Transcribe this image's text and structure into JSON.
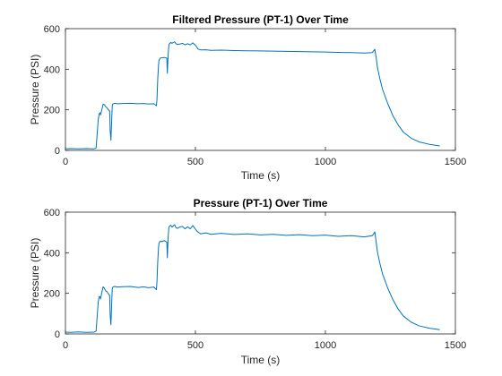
{
  "chart_data": [
    {
      "type": "line",
      "title": "Filtered Pressure (PT-1) Over Time",
      "xlabel": "Time (s)",
      "ylabel": "Pressure (PSI)",
      "xlim": [
        0,
        1500
      ],
      "ylim": [
        0,
        600
      ],
      "xticks": [
        0,
        500,
        1000,
        1500
      ],
      "yticks": [
        0,
        200,
        400,
        600
      ],
      "grid": false,
      "series_color": "#0072BD",
      "series": [
        {
          "x": [
            0,
            20,
            50,
            80,
            110,
            118,
            122,
            126,
            130,
            133,
            135,
            138,
            140,
            145,
            150,
            155,
            160,
            165,
            170,
            172,
            175,
            178,
            180,
            182,
            185,
            190,
            200,
            220,
            250,
            280,
            300,
            320,
            340,
            350,
            352,
            355,
            358,
            360,
            365,
            370,
            380,
            390,
            392,
            395,
            398,
            400,
            405,
            410,
            420,
            425,
            430,
            440,
            450,
            460,
            470,
            480,
            490,
            500,
            505,
            510,
            520,
            540,
            560,
            600,
            650,
            700,
            750,
            800,
            850,
            900,
            950,
            1000,
            1050,
            1100,
            1150,
            1180,
            1185,
            1190,
            1195,
            1200,
            1210,
            1220,
            1240,
            1260,
            1280,
            1300,
            1330,
            1360,
            1400,
            1440
          ],
          "y": [
            8,
            9,
            8,
            9,
            8,
            12,
            80,
            150,
            180,
            185,
            175,
            190,
            200,
            228,
            225,
            215,
            210,
            200,
            195,
            100,
            50,
            150,
            220,
            228,
            230,
            232,
            230,
            231,
            232,
            230,
            231,
            229,
            230,
            220,
            250,
            350,
            420,
            445,
            455,
            456,
            458,
            455,
            380,
            470,
            520,
            525,
            532,
            528,
            535,
            526,
            522,
            524,
            528,
            520,
            526,
            520,
            530,
            518,
            510,
            500,
            495,
            496,
            493,
            494,
            492,
            491,
            490,
            489,
            488,
            487,
            486,
            485,
            483,
            482,
            480,
            482,
            490,
            498,
            460,
            410,
            350,
            300,
            230,
            170,
            125,
            90,
            60,
            42,
            30,
            22
          ]
        }
      ]
    },
    {
      "type": "line",
      "title": "Pressure (PT-1) Over Time",
      "xlabel": "Time (s)",
      "ylabel": "Pressure (PSI)",
      "xlim": [
        0,
        1500
      ],
      "ylim": [
        0,
        600
      ],
      "xticks": [
        0,
        500,
        1000,
        1500
      ],
      "yticks": [
        0,
        200,
        400,
        600
      ],
      "grid": false,
      "series_color": "#0072BD",
      "series": [
        {
          "x": [
            0,
            20,
            50,
            80,
            110,
            118,
            122,
            126,
            130,
            133,
            135,
            138,
            140,
            145,
            150,
            155,
            160,
            165,
            170,
            172,
            175,
            178,
            180,
            182,
            185,
            190,
            200,
            220,
            250,
            280,
            300,
            320,
            340,
            350,
            352,
            355,
            358,
            360,
            365,
            370,
            380,
            390,
            392,
            395,
            398,
            400,
            405,
            410,
            420,
            425,
            430,
            440,
            450,
            460,
            470,
            480,
            490,
            500,
            505,
            510,
            520,
            540,
            560,
            600,
            650,
            700,
            750,
            800,
            850,
            900,
            950,
            1000,
            1050,
            1100,
            1150,
            1180,
            1185,
            1190,
            1195,
            1200,
            1210,
            1220,
            1240,
            1260,
            1280,
            1300,
            1330,
            1360,
            1400,
            1440
          ],
          "y": [
            9,
            8,
            10,
            8,
            9,
            14,
            85,
            155,
            185,
            182,
            172,
            192,
            205,
            232,
            224,
            212,
            208,
            198,
            190,
            95,
            45,
            155,
            222,
            230,
            232,
            234,
            231,
            233,
            234,
            229,
            232,
            228,
            231,
            218,
            255,
            355,
            425,
            448,
            457,
            455,
            460,
            452,
            375,
            475,
            525,
            530,
            536,
            526,
            538,
            524,
            520,
            527,
            530,
            518,
            528,
            518,
            534,
            516,
            508,
            502,
            493,
            498,
            491,
            496,
            490,
            493,
            488,
            491,
            486,
            489,
            484,
            487,
            481,
            484,
            478,
            484,
            492,
            503,
            455,
            405,
            345,
            295,
            225,
            168,
            122,
            88,
            58,
            40,
            28,
            21
          ]
        }
      ]
    }
  ]
}
